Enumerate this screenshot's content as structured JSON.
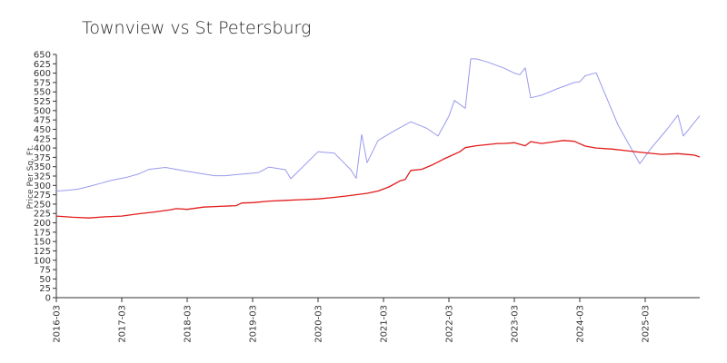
{
  "chart_data": {
    "type": "line",
    "title": "Townview vs St Petersburg",
    "xlabel": "",
    "ylabel": "Price Per Sq. Ft.",
    "ylim": [
      0,
      650
    ],
    "yticks": [
      0,
      25,
      50,
      75,
      100,
      125,
      150,
      175,
      200,
      225,
      250,
      275,
      300,
      325,
      350,
      375,
      400,
      425,
      450,
      475,
      500,
      525,
      550,
      575,
      600,
      625,
      650
    ],
    "xlim": [
      "2016-03",
      "2026-01"
    ],
    "xticks": [
      "2016-03",
      "2017-03",
      "2018-03",
      "2019-03",
      "2020-03",
      "2021-03",
      "2022-03",
      "2023-03",
      "2024-03",
      "2025-03"
    ],
    "grid": false,
    "series": [
      {
        "color": "#9999ee",
        "points": [
          [
            "2016-03",
            285
          ],
          [
            "2016-05",
            287
          ],
          [
            "2016-07",
            290
          ],
          [
            "2016-09",
            297
          ],
          [
            "2016-11",
            305
          ],
          [
            "2017-01",
            313
          ],
          [
            "2017-04",
            322
          ],
          [
            "2017-06",
            330
          ],
          [
            "2017-08",
            343
          ],
          [
            "2017-11",
            348
          ],
          [
            "2018-02",
            340
          ],
          [
            "2018-05",
            333
          ],
          [
            "2018-08",
            326
          ],
          [
            "2018-10",
            326
          ],
          [
            "2019-01",
            330
          ],
          [
            "2019-04",
            334
          ],
          [
            "2019-06",
            349
          ],
          [
            "2019-09",
            342
          ],
          [
            "2019-10",
            318
          ],
          [
            "2020-03",
            390
          ],
          [
            "2020-06",
            386
          ],
          [
            "2020-09",
            342
          ],
          [
            "2020-10",
            319
          ],
          [
            "2020-11",
            436
          ],
          [
            "2020-12",
            361
          ],
          [
            "2021-02",
            420
          ],
          [
            "2021-05",
            446
          ],
          [
            "2021-08",
            470
          ],
          [
            "2021-11",
            452
          ],
          [
            "2022-01",
            432
          ],
          [
            "2022-03",
            485
          ],
          [
            "2022-04",
            527
          ],
          [
            "2022-06",
            506
          ],
          [
            "2022-07",
            638
          ],
          [
            "2022-08",
            638
          ],
          [
            "2022-10",
            630
          ],
          [
            "2023-01",
            614
          ],
          [
            "2023-03",
            600
          ],
          [
            "2023-04",
            596
          ],
          [
            "2023-05",
            614
          ],
          [
            "2023-06",
            534
          ],
          [
            "2023-08",
            541
          ],
          [
            "2023-11",
            559
          ],
          [
            "2024-02",
            575
          ],
          [
            "2024-03",
            577
          ],
          [
            "2024-04",
            593
          ],
          [
            "2024-06",
            601
          ],
          [
            "2024-10",
            462
          ],
          [
            "2025-02",
            358
          ],
          [
            "2025-04",
            398
          ],
          [
            "2025-07",
            450
          ],
          [
            "2025-09",
            488
          ],
          [
            "2025-10",
            432
          ],
          [
            "2026-01",
            486
          ]
        ]
      },
      {
        "color": "#e21b1b",
        "points": [
          [
            "2016-03",
            218
          ],
          [
            "2016-06",
            215
          ],
          [
            "2016-09",
            213
          ],
          [
            "2016-12",
            216
          ],
          [
            "2017-03",
            218
          ],
          [
            "2017-06",
            224
          ],
          [
            "2017-09",
            229
          ],
          [
            "2017-12",
            235
          ],
          [
            "2018-01",
            238
          ],
          [
            "2018-03",
            236
          ],
          [
            "2018-06",
            242
          ],
          [
            "2018-09",
            244
          ],
          [
            "2018-12",
            246
          ],
          [
            "2019-01",
            253
          ],
          [
            "2019-03",
            254
          ],
          [
            "2019-06",
            258
          ],
          [
            "2019-09",
            260
          ],
          [
            "2019-12",
            262
          ],
          [
            "2020-03",
            264
          ],
          [
            "2020-06",
            268
          ],
          [
            "2020-09",
            273
          ],
          [
            "2020-12",
            279
          ],
          [
            "2021-02",
            285
          ],
          [
            "2021-04",
            296
          ],
          [
            "2021-06",
            312
          ],
          [
            "2021-07",
            316
          ],
          [
            "2021-08",
            340
          ],
          [
            "2021-10",
            343
          ],
          [
            "2021-12",
            355
          ],
          [
            "2022-02",
            370
          ],
          [
            "2022-03",
            377
          ],
          [
            "2022-05",
            390
          ],
          [
            "2022-06",
            401
          ],
          [
            "2022-08",
            406
          ],
          [
            "2022-10",
            409
          ],
          [
            "2022-12",
            412
          ],
          [
            "2023-01",
            412
          ],
          [
            "2023-03",
            414
          ],
          [
            "2023-04",
            410
          ],
          [
            "2023-05",
            406
          ],
          [
            "2023-06",
            417
          ],
          [
            "2023-08",
            412
          ],
          [
            "2023-10",
            416
          ],
          [
            "2023-12",
            420
          ],
          [
            "2024-02",
            418
          ],
          [
            "2024-04",
            405
          ],
          [
            "2024-06",
            400
          ],
          [
            "2024-09",
            397
          ],
          [
            "2024-12",
            392
          ],
          [
            "2025-03",
            387
          ],
          [
            "2025-06",
            383
          ],
          [
            "2025-09",
            385
          ],
          [
            "2025-12",
            381
          ],
          [
            "2026-01",
            376
          ]
        ]
      }
    ]
  }
}
